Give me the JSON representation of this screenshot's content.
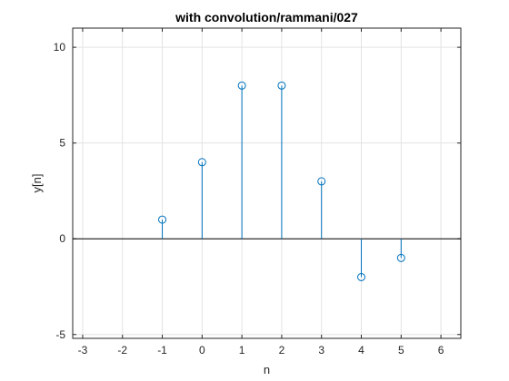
{
  "chart_data": {
    "type": "stem",
    "title": "with convolution/rammani/027",
    "xlabel": "n",
    "ylabel": "y[n]",
    "xlim": [
      -3.25,
      6.5
    ],
    "ylim": [
      -5.2,
      11
    ],
    "xticks": [
      -3,
      -2,
      -1,
      0,
      1,
      2,
      3,
      4,
      5,
      6
    ],
    "yticks": [
      -5,
      0,
      5,
      10
    ],
    "grid": true,
    "baseline": 0,
    "series": [
      {
        "x": [
          -1,
          0,
          1,
          2,
          3,
          4,
          5
        ],
        "y": [
          1,
          4,
          8,
          8,
          3,
          -2,
          -1
        ],
        "color": "#0072BD",
        "marker": "circle"
      }
    ]
  }
}
